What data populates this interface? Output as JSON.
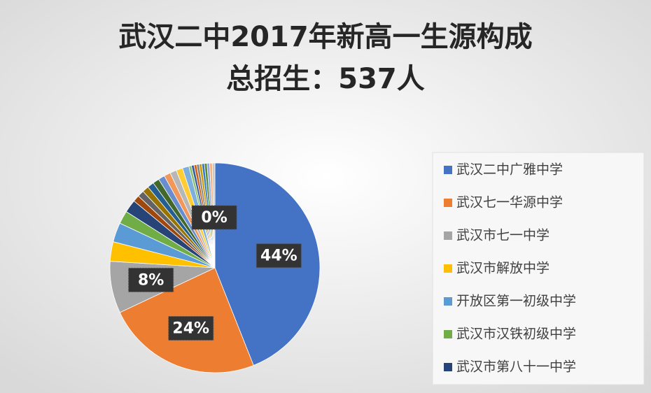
{
  "chart_data": {
    "type": "pie",
    "title": "武汉二中2017年新高一生源构成",
    "subtitle": "总招生：537人",
    "categories": [
      "武汉二中广雅中学",
      "武汉七一华源中学",
      "武汉市七一中学",
      "武汉市解放中学",
      "开放区第一初级中学",
      "武汉市汉铁初级中学",
      "武汉市第八十一中学",
      null,
      null,
      null,
      null,
      null,
      null,
      null,
      null,
      null,
      null,
      null,
      null,
      null,
      null,
      null,
      null,
      null,
      null,
      null,
      null
    ],
    "values": [
      44,
      24,
      8,
      3,
      3,
      2,
      2,
      1,
      1,
      1,
      1,
      1,
      1,
      1,
      1,
      1,
      1,
      0.4,
      0.4,
      0.4,
      0.4,
      0.4,
      0.4,
      0.4,
      0.4,
      0.4,
      0.4
    ],
    "value_labels": [
      "44%",
      "24%",
      "8%",
      null,
      null,
      null,
      null,
      null,
      null,
      null,
      null,
      null,
      null,
      null,
      null,
      null,
      null,
      null,
      null,
      null,
      null,
      null,
      null,
      null,
      null,
      null,
      "0%"
    ],
    "colors": [
      "#4472c4",
      "#ed7d31",
      "#a5a5a5",
      "#ffc000",
      "#5b9bd5",
      "#70ad47",
      "#264478",
      "#9e480e",
      "#636363",
      "#997300",
      "#255e91",
      "#43682b",
      "#698ed0",
      "#f1975a",
      "#b7b7b7",
      "#ffcd33",
      "#7cafdd",
      "#8cc168",
      "#335aa1",
      "#d26012",
      "#848484",
      "#cc9a00",
      "#327dc2",
      "#5a8a39",
      "#8faadc",
      "#f4b183",
      "#c9c9c9"
    ],
    "legend": "right"
  }
}
